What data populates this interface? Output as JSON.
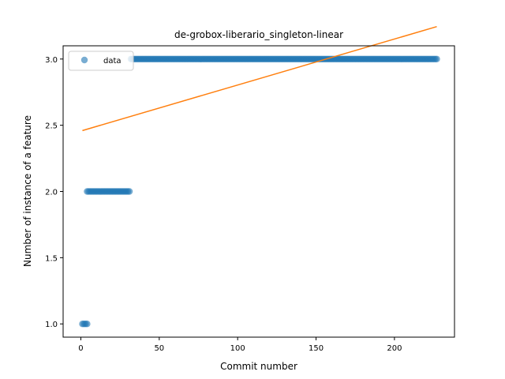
{
  "chart_data": {
    "type": "scatter",
    "title": "de-grobox-liberario_singleton-linear",
    "xlabel": "Commit number",
    "ylabel": "Number of instance of a feature",
    "xlim": [
      -11.3,
      238.3
    ],
    "ylim": [
      0.9,
      3.1
    ],
    "xticks": [
      0,
      50,
      100,
      150,
      200
    ],
    "xtick_labels": [
      "0",
      "50",
      "100",
      "150",
      "200"
    ],
    "yticks": [
      1.0,
      1.5,
      2.0,
      2.5,
      3.0
    ],
    "ytick_labels": [
      "1.0",
      "1.5",
      "2.0",
      "2.5",
      "3.0"
    ],
    "legend": {
      "placement": "top-left",
      "entries": [
        "data"
      ]
    },
    "grid": false,
    "series": [
      {
        "name": "data",
        "kind": "scatter",
        "color": "#1f77b4",
        "segments": [
          {
            "x_start": 1,
            "x_end": 4,
            "y": 1.0
          },
          {
            "x_start": 4,
            "x_end": 31,
            "y": 2.0
          },
          {
            "x_start": 32,
            "x_end": 227,
            "y": 3.0
          }
        ]
      },
      {
        "kind": "line",
        "color": "#ff7f0e",
        "x": [
          1,
          227
        ],
        "y": [
          2.46,
          3.245
        ]
      }
    ]
  }
}
